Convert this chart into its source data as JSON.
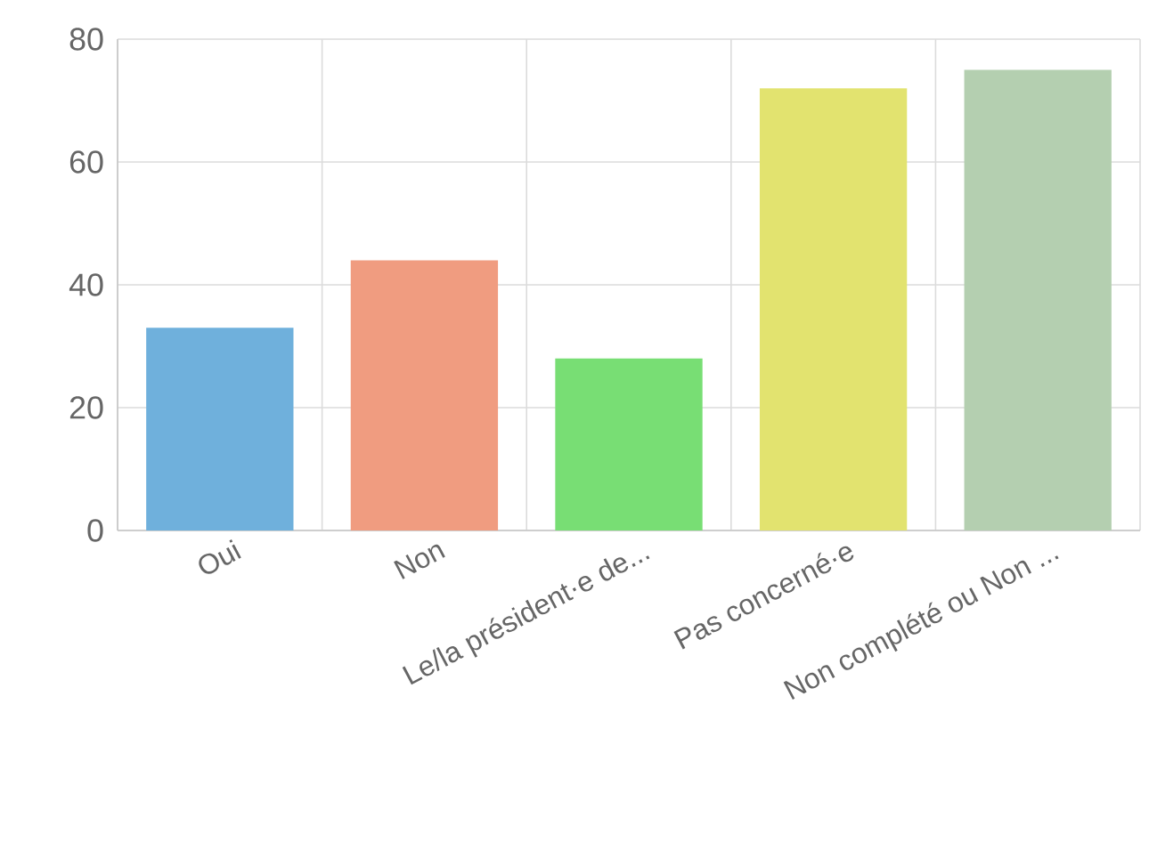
{
  "chart_data": {
    "type": "bar",
    "categories": [
      "Oui",
      "Non",
      "Le/la président·e de...",
      "Pas concerné·e",
      "Non complété ou Non ..."
    ],
    "values": [
      33,
      44,
      28,
      72,
      75
    ],
    "colors": [
      "#6fb0dc",
      "#f09c80",
      "#78de74",
      "#e2e36f",
      "#b4cfb0"
    ],
    "ylim": [
      0,
      80
    ],
    "yticks": [
      0,
      20,
      40,
      60,
      80
    ],
    "grid": true
  }
}
